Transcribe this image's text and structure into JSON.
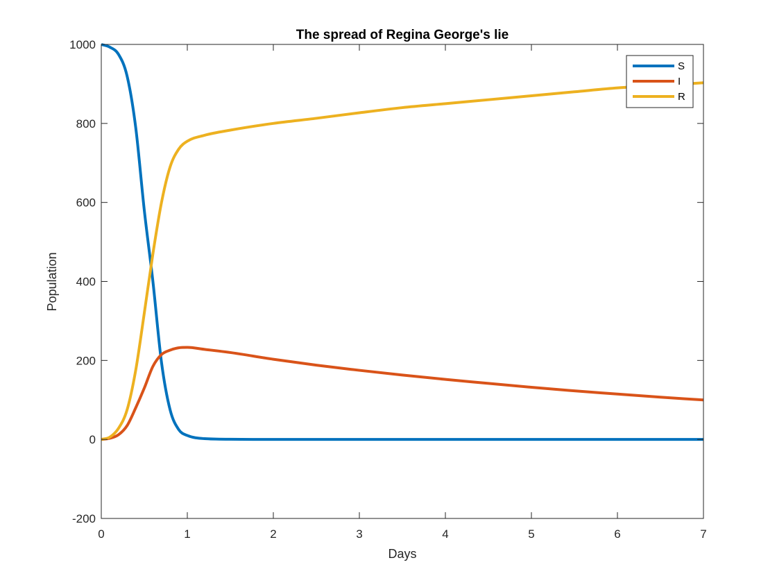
{
  "chart_data": {
    "type": "line",
    "title": "The spread of Regina George's lie",
    "xlabel": "Days",
    "ylabel": "Population",
    "xlim": [
      0,
      7
    ],
    "ylim": [
      -200,
      1000
    ],
    "x_ticks": [
      0,
      1,
      2,
      3,
      4,
      5,
      6,
      7
    ],
    "y_ticks": [
      -200,
      0,
      200,
      400,
      600,
      800,
      1000
    ],
    "grid": false,
    "legend_position": "top-right",
    "series": [
      {
        "name": "S",
        "color": "#0072BD",
        "points": [
          [
            0,
            1000
          ],
          [
            0.1,
            993
          ],
          [
            0.2,
            975
          ],
          [
            0.3,
            920
          ],
          [
            0.4,
            790
          ],
          [
            0.5,
            580
          ],
          [
            0.6,
            400
          ],
          [
            0.7,
            195
          ],
          [
            0.8,
            75
          ],
          [
            0.9,
            25
          ],
          [
            1.0,
            10
          ],
          [
            1.2,
            2
          ],
          [
            1.5,
            0.5
          ],
          [
            2,
            0
          ],
          [
            3,
            0
          ],
          [
            4,
            0
          ],
          [
            5,
            0
          ],
          [
            6,
            0
          ],
          [
            7,
            0
          ]
        ]
      },
      {
        "name": "I",
        "color": "#D95319",
        "points": [
          [
            0,
            0
          ],
          [
            0.1,
            3
          ],
          [
            0.2,
            12
          ],
          [
            0.3,
            35
          ],
          [
            0.4,
            80
          ],
          [
            0.5,
            130
          ],
          [
            0.6,
            185
          ],
          [
            0.7,
            215
          ],
          [
            0.8,
            226
          ],
          [
            0.9,
            232
          ],
          [
            1.0,
            233
          ],
          [
            1.2,
            228
          ],
          [
            1.5,
            220
          ],
          [
            2,
            203
          ],
          [
            2.5,
            188
          ],
          [
            3,
            175
          ],
          [
            3.5,
            163
          ],
          [
            4,
            152
          ],
          [
            4.5,
            142
          ],
          [
            5,
            132
          ],
          [
            5.5,
            123
          ],
          [
            6,
            115
          ],
          [
            6.5,
            107
          ],
          [
            7,
            100
          ]
        ]
      },
      {
        "name": "R",
        "color": "#EDB120",
        "points": [
          [
            0,
            0
          ],
          [
            0.1,
            6
          ],
          [
            0.2,
            28
          ],
          [
            0.3,
            75
          ],
          [
            0.4,
            175
          ],
          [
            0.5,
            320
          ],
          [
            0.6,
            470
          ],
          [
            0.7,
            600
          ],
          [
            0.8,
            690
          ],
          [
            0.9,
            735
          ],
          [
            1.0,
            755
          ],
          [
            1.2,
            770
          ],
          [
            1.5,
            783
          ],
          [
            2,
            800
          ],
          [
            2.5,
            813
          ],
          [
            3,
            827
          ],
          [
            3.5,
            840
          ],
          [
            4,
            850
          ],
          [
            4.5,
            860
          ],
          [
            5,
            870
          ],
          [
            5.5,
            880
          ],
          [
            6,
            890
          ],
          [
            6.5,
            896
          ],
          [
            7,
            903
          ]
        ]
      }
    ]
  }
}
